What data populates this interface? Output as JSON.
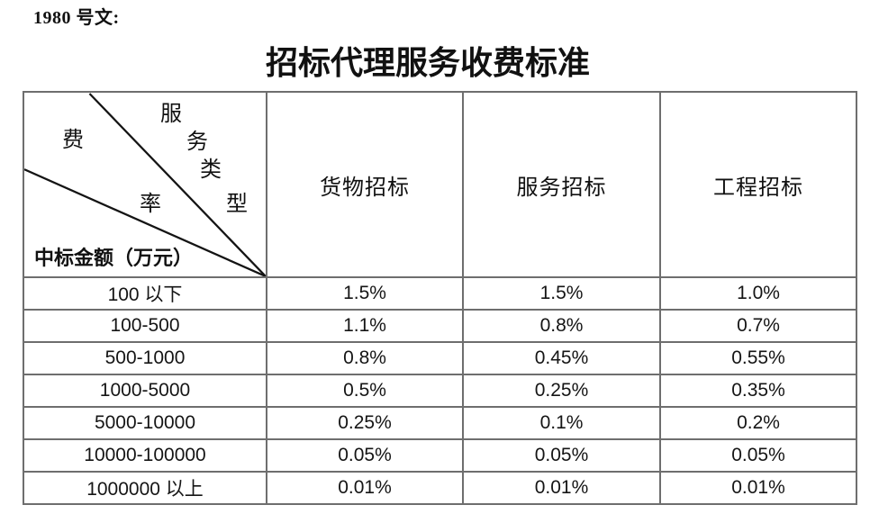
{
  "document": {
    "ref_label": "1980 号文:",
    "title": "招标代理服务收费标准"
  },
  "table": {
    "corner": {
      "type_axis_chars": [
        "服",
        "务",
        "类",
        "型"
      ],
      "rate_axis_chars": [
        "费",
        "率"
      ],
      "row_axis_label": "中标金额（万元）"
    },
    "column_headers": [
      "货物招标",
      "服务招标",
      "工程招标"
    ],
    "rows": [
      {
        "range": "100 以下",
        "values": [
          "1.5%",
          "1.5%",
          "1.0%"
        ]
      },
      {
        "range": "100-500",
        "values": [
          "1.1%",
          "0.8%",
          "0.7%"
        ]
      },
      {
        "range": "500-1000",
        "values": [
          "0.8%",
          "0.45%",
          "0.55%"
        ]
      },
      {
        "range": "1000-5000",
        "values": [
          "0.5%",
          "0.25%",
          "0.35%"
        ]
      },
      {
        "range": "5000-10000",
        "values": [
          "0.25%",
          "0.1%",
          "0.2%"
        ]
      },
      {
        "range": "10000-100000",
        "values": [
          "0.05%",
          "0.05%",
          "0.05%"
        ]
      },
      {
        "range": "1000000 以上",
        "values": [
          "0.01%",
          "0.01%",
          "0.01%"
        ]
      }
    ]
  },
  "colors": {
    "border_gray": "#6e6e6e",
    "diagonal_black": "#141414",
    "text": "#111111"
  }
}
